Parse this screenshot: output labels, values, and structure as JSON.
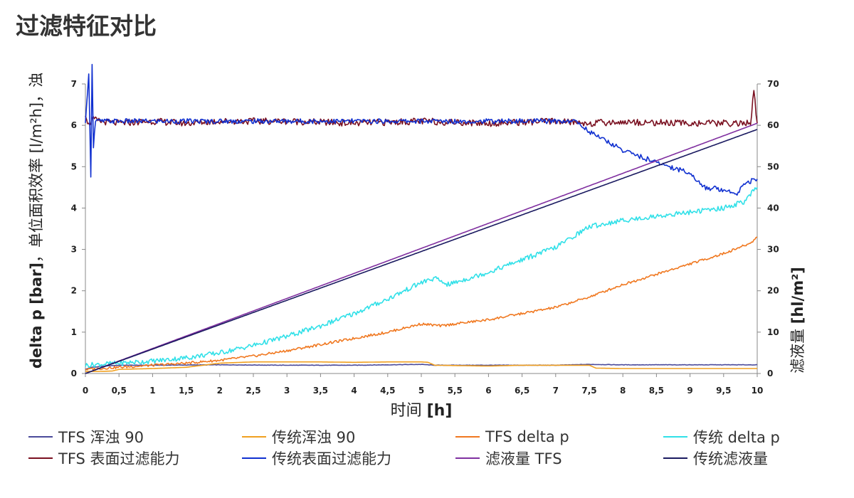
{
  "title": "过滤特征对比",
  "chart_data": {
    "type": "line",
    "xlabel_main": "时间",
    "xlabel_unit": "[h]",
    "ylabel_left_bold": "delta p [bar]",
    "ylabel_left_rest": "，单位面积效率 [l/m²h]，浊",
    "ylabel_right_main": "滤液量",
    "ylabel_right_unit": "[hl/m²]",
    "xlim": [
      0,
      10
    ],
    "ylim_left": [
      0,
      7
    ],
    "ylim_right": [
      0,
      70
    ],
    "x_ticks": [
      "0",
      "0,5",
      "1",
      "1,5",
      "2",
      "2,5",
      "3",
      "3,5",
      "4",
      "4,5",
      "5",
      "5,5",
      "6",
      "6,5",
      "7",
      "7,5",
      "8",
      "8,5",
      "9",
      "9,5",
      "10"
    ],
    "y_left_ticks": [
      "0",
      "1",
      "2",
      "3",
      "4",
      "5",
      "6",
      "7"
    ],
    "y_right_ticks": [
      "0",
      "10",
      "20",
      "30",
      "40",
      "50",
      "60",
      "70"
    ],
    "series": [
      {
        "name": "TFS 浑浊 90",
        "color": "#4a4a9a",
        "axis": "left",
        "x": [
          0,
          0.1,
          0.3,
          0.5,
          1,
          2,
          3,
          4,
          5,
          5.2,
          6,
          7,
          7.5,
          8,
          9,
          10
        ],
        "y": [
          0.1,
          0.15,
          0.18,
          0.2,
          0.2,
          0.21,
          0.2,
          0.2,
          0.22,
          0.2,
          0.2,
          0.2,
          0.22,
          0.21,
          0.21,
          0.21
        ]
      },
      {
        "name": "传统浑浊 90",
        "color": "#f0a020",
        "axis": "left",
        "x": [
          0,
          0.2,
          0.4,
          0.5,
          1,
          1.5,
          2,
          2.5,
          3,
          3.5,
          4,
          4.5,
          5,
          5.1,
          5.2,
          6,
          6.5,
          7,
          7.5,
          7.6,
          8,
          9,
          10
        ],
        "y": [
          0.05,
          0.05,
          0.06,
          0.1,
          0.12,
          0.15,
          0.25,
          0.28,
          0.28,
          0.28,
          0.27,
          0.28,
          0.28,
          0.27,
          0.2,
          0.18,
          0.2,
          0.2,
          0.2,
          0.13,
          0.12,
          0.12,
          0.12
        ]
      },
      {
        "name": "TFS delta p",
        "color": "#f07820",
        "axis": "left",
        "x": [
          0,
          0.5,
          1,
          1.5,
          2,
          2.5,
          3,
          3.5,
          4,
          4.5,
          5,
          5.3,
          5.5,
          6,
          6.5,
          7,
          7.5,
          8,
          8.5,
          9,
          9.5,
          9.9,
          10
        ],
        "y": [
          0.1,
          0.15,
          0.2,
          0.25,
          0.32,
          0.42,
          0.55,
          0.7,
          0.85,
          1.0,
          1.2,
          1.15,
          1.2,
          1.3,
          1.45,
          1.6,
          1.85,
          2.15,
          2.4,
          2.65,
          2.9,
          3.15,
          3.3
        ]
      },
      {
        "name": "传统 delta p",
        "color": "#30e0e8",
        "axis": "left",
        "x": [
          0,
          0.5,
          1,
          1.5,
          2,
          2.5,
          3,
          3.5,
          4,
          4.5,
          5,
          5.2,
          5.4,
          6,
          6.5,
          7,
          7.3,
          7.5,
          8,
          8.5,
          9,
          9.5,
          9.8,
          10
        ],
        "y": [
          0.2,
          0.25,
          0.3,
          0.38,
          0.5,
          0.68,
          0.9,
          1.15,
          1.45,
          1.8,
          2.2,
          2.3,
          2.15,
          2.45,
          2.75,
          3.05,
          3.35,
          3.55,
          3.7,
          3.8,
          3.9,
          4.0,
          4.15,
          4.5
        ]
      },
      {
        "name": "TFS 表面过滤能力",
        "color": "#7a1020",
        "axis": "left",
        "x": [
          0,
          0.05,
          0.1,
          0.2,
          0.5,
          1,
          1.5,
          2,
          3,
          4,
          5,
          6,
          7,
          7.5,
          8,
          9,
          9.9,
          9.95,
          10
        ],
        "y": [
          6.3,
          6.0,
          6.15,
          6.1,
          6.05,
          6.1,
          6.05,
          6.1,
          6.1,
          6.05,
          6.1,
          6.05,
          6.1,
          6.05,
          6.08,
          6.05,
          6.05,
          6.8,
          6.05
        ]
      },
      {
        "name": "传统表面过滤能力",
        "color": "#1030d0",
        "axis": "left",
        "x": [
          0,
          0.05,
          0.08,
          0.1,
          0.12,
          0.15,
          0.3,
          1,
          2,
          3,
          4,
          5,
          6,
          7,
          7.3,
          7.5,
          8,
          8.5,
          9,
          9.2,
          9.5,
          9.7,
          9.8,
          10
        ],
        "y": [
          6.0,
          7.3,
          4.8,
          7.5,
          5.5,
          6.1,
          6.1,
          6.1,
          6.1,
          6.1,
          6.1,
          6.1,
          6.1,
          6.1,
          6.1,
          5.85,
          5.4,
          5.1,
          4.85,
          4.5,
          4.45,
          4.35,
          4.6,
          4.7
        ]
      },
      {
        "name": "滤液量 TFS",
        "color": "#8030a0",
        "axis": "right",
        "x": [
          0,
          10
        ],
        "y": [
          0,
          60.5
        ]
      },
      {
        "name": "传统滤液量",
        "color": "#1a1a60",
        "axis": "right",
        "x": [
          0,
          10
        ],
        "y": [
          0,
          59
        ]
      }
    ],
    "legend": [
      "TFS 浑浊 90",
      "传统浑浊 90",
      "TFS delta p",
      "传统 delta p",
      "TFS 表面过滤能力",
      "传统表面过滤能力",
      "滤液量 TFS",
      "传统滤液量"
    ],
    "legend_placement": "bottom",
    "grid": false
  }
}
